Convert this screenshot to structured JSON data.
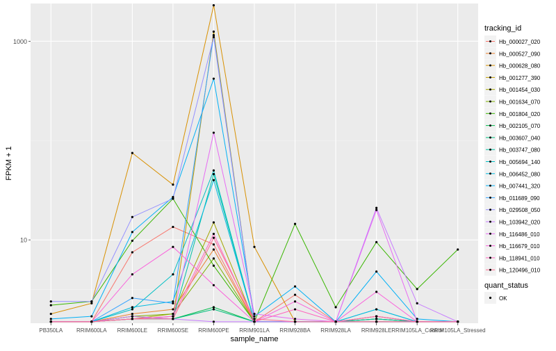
{
  "chart_data": {
    "type": "line",
    "xlabel": "sample_name",
    "ylabel": "FPKM + 1",
    "y_scale": "log10",
    "ylim": [
      1.45,
      2400
    ],
    "y_ticks": [
      {
        "value": 10,
        "label": "10"
      },
      {
        "value": 1000,
        "label": "1000"
      }
    ],
    "grid": true,
    "categories": [
      "PB350LA",
      "RRIM600LA",
      "RRIM600LE",
      "RRIM600SE",
      "RRIM600PE",
      "RRIM901LA",
      "RRIM928BA",
      "RRIM928LA",
      "RRIM928LE",
      "RRIM105LA_Control",
      "RRIM105LA_Stressed"
    ],
    "legend": {
      "title": "tracking_id",
      "position": "right",
      "items": [
        "Hb_000027_020",
        "Hb_000527_090",
        "Hb_000628_080",
        "Hb_001277_390",
        "Hb_001454_030",
        "Hb_001634_070",
        "Hb_001804_020",
        "Hb_002105_070",
        "Hb_003607_040",
        "Hb_003747_080",
        "Hb_005694_140",
        "Hb_006452_080",
        "Hb_007441_320",
        "Hb_011689_090",
        "Hb_029508_050",
        "Hb_103942_020",
        "Hb_116486_010",
        "Hb_116679_010",
        "Hb_118941_010",
        "Hb_120496_010"
      ],
      "colors": [
        "#F8766D",
        "#EA8331",
        "#D89000",
        "#C09B00",
        "#A3A500",
        "#7CAE00",
        "#39B600",
        "#00BB4E",
        "#00BF7D",
        "#00C1A3",
        "#00BFC4",
        "#00BAE0",
        "#00B0F6",
        "#35A2FF",
        "#9590FF",
        "#C77CFF",
        "#E76BF3",
        "#FA62DB",
        "#FF62BC",
        "#FF6C91"
      ]
    },
    "legend2": {
      "title": "quant_status",
      "items": [
        "OK"
      ]
    },
    "series": [
      {
        "name": "Hb_000027_020",
        "values": [
          1.5,
          1.5,
          7.5,
          13.5,
          9.0,
          1.5,
          2.8,
          1.5,
          1.7,
          1.5,
          1.5
        ]
      },
      {
        "name": "Hb_000527_090",
        "values": [
          1.5,
          1.5,
          1.8,
          2.0,
          8.0,
          1.5,
          1.5,
          1.5,
          1.6,
          1.5,
          1.5
        ]
      },
      {
        "name": "Hb_000628_080",
        "values": [
          1.8,
          2.3,
          75,
          36,
          2300,
          8.5,
          1.5,
          1.5,
          1.5,
          1.5,
          1.5
        ]
      },
      {
        "name": "Hb_001277_390",
        "values": [
          1.5,
          1.5,
          1.7,
          1.6,
          1250,
          1.5,
          1.5,
          1.5,
          1.5,
          1.5,
          1.5
        ]
      },
      {
        "name": "Hb_001454_030",
        "values": [
          1.5,
          1.5,
          1.6,
          1.8,
          15,
          1.5,
          1.5,
          1.5,
          1.7,
          1.5,
          1.5
        ]
      },
      {
        "name": "Hb_001634_070",
        "values": [
          1.5,
          1.5,
          1.7,
          1.8,
          6.5,
          1.5,
          1.5,
          1.5,
          1.6,
          1.5,
          1.5
        ]
      },
      {
        "name": "Hb_001804_020",
        "values": [
          2.2,
          2.4,
          9.8,
          26,
          5.5,
          1.5,
          14.5,
          2.1,
          9.5,
          3.2,
          8.0
        ]
      },
      {
        "name": "Hb_002105_070",
        "values": [
          1.5,
          1.5,
          1.6,
          1.6,
          2.1,
          1.5,
          1.5,
          1.5,
          1.5,
          1.5,
          1.5
        ]
      },
      {
        "name": "Hb_003607_040",
        "values": [
          1.5,
          1.5,
          1.6,
          1.6,
          2.0,
          1.5,
          1.5,
          1.5,
          1.6,
          1.5,
          1.5
        ]
      },
      {
        "name": "Hb_003747_080",
        "values": [
          1.5,
          1.5,
          1.6,
          1.6,
          46,
          1.5,
          1.5,
          1.5,
          1.6,
          1.5,
          1.5
        ]
      },
      {
        "name": "Hb_005694_140",
        "values": [
          1.5,
          1.5,
          2.0,
          4.5,
          50,
          1.5,
          1.5,
          1.5,
          2.0,
          1.5,
          1.5
        ]
      },
      {
        "name": "Hb_006452_080",
        "values": [
          1.5,
          1.5,
          2.1,
          2.4,
          40,
          1.5,
          1.5,
          1.5,
          2.0,
          1.5,
          1.5
        ]
      },
      {
        "name": "Hb_007441_320",
        "values": [
          1.6,
          1.7,
          12,
          27,
          420,
          1.7,
          3.4,
          1.5,
          4.8,
          1.6,
          1.5
        ]
      },
      {
        "name": "Hb_011689_090",
        "values": [
          1.5,
          1.5,
          2.6,
          2.3,
          1150,
          1.5,
          1.5,
          1.5,
          1.5,
          1.5,
          1.5
        ]
      },
      {
        "name": "Hb_029508_050",
        "values": [
          2.4,
          2.4,
          17,
          26,
          1100,
          1.5,
          1.5,
          1.5,
          1.5,
          1.5,
          1.5
        ]
      },
      {
        "name": "Hb_103942_020",
        "values": [
          1.5,
          1.5,
          1.7,
          1.6,
          1.5,
          1.5,
          1.5,
          1.5,
          21,
          2.3,
          1.5
        ]
      },
      {
        "name": "Hb_116486_010",
        "values": [
          1.5,
          1.5,
          1.6,
          1.7,
          120,
          1.8,
          1.6,
          1.5,
          20,
          1.5,
          1.5
        ]
      },
      {
        "name": "Hb_116679_010",
        "values": [
          1.5,
          1.5,
          4.5,
          8.5,
          3.5,
          1.5,
          2.4,
          1.5,
          3.0,
          1.5,
          1.5
        ]
      },
      {
        "name": "Hb_118941_010",
        "values": [
          1.5,
          1.5,
          1.6,
          1.7,
          11.5,
          1.5,
          2.0,
          1.5,
          1.7,
          1.5,
          1.5
        ]
      },
      {
        "name": "Hb_120496_010",
        "values": [
          1.5,
          1.5,
          1.6,
          1.6,
          10.5,
          1.6,
          1.5,
          1.5,
          1.5,
          1.5,
          1.5
        ]
      }
    ]
  }
}
